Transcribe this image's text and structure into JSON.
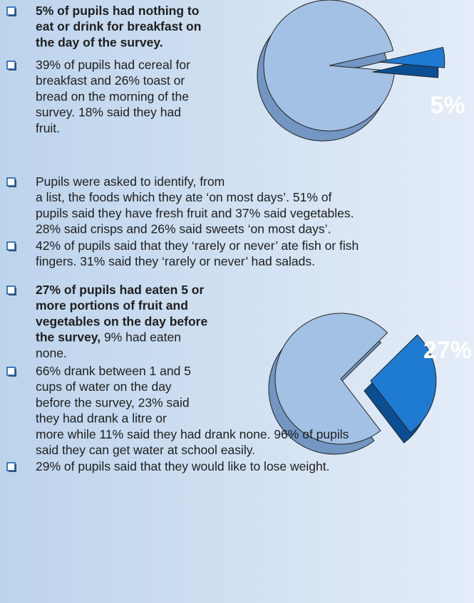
{
  "bullets": [
    {
      "lines": [
        [
          {
            "text": "5% of pupils had nothing to",
            "bold": true
          }
        ],
        [
          {
            "text": "eat or drink for breakfast on",
            "bold": true
          }
        ],
        [
          {
            "text": "the day of the survey.",
            "bold": true
          }
        ]
      ]
    },
    {
      "lines": [
        [
          {
            "text": "39% of pupils had cereal for",
            "bold": false
          }
        ],
        [
          {
            "text": "breakfast and 26% toast or",
            "bold": false
          }
        ],
        [
          {
            "text": "bread on the morning of the",
            "bold": false
          }
        ],
        [
          {
            "text": "survey. 18% said they had",
            "bold": false
          }
        ],
        [
          {
            "text": "fruit.",
            "bold": false
          }
        ]
      ]
    },
    {
      "lines": [
        [
          {
            "text": "Pupils were asked to identify, from",
            "bold": false
          }
        ],
        [
          {
            "text": "a list, the foods which they ate ‘on most days’. 51% of",
            "bold": false
          }
        ],
        [
          {
            "text": "pupils said they have fresh fruit and 37% said vegetables.",
            "bold": false
          }
        ],
        [
          {
            "text": "28% said crisps and 26% said sweets ‘on most days’.",
            "bold": false
          }
        ]
      ]
    },
    {
      "lines": [
        [
          {
            "text": "42% of pupils said that they ‘rarely or never’ ate fish or fish",
            "bold": false
          }
        ],
        [
          {
            "text": "fingers. 31% said they ‘rarely or never’ had salads.",
            "bold": false
          }
        ]
      ]
    },
    {
      "lines": [
        [
          {
            "text": "27% of pupils had eaten 5 or",
            "bold": true
          }
        ],
        [
          {
            "text": "more portions of fruit and",
            "bold": true
          }
        ],
        [
          {
            "text": "vegetables on the day before",
            "bold": true
          }
        ],
        [
          {
            "text": "the survey,",
            "bold": true
          },
          {
            "text": " 9% had eaten",
            "bold": false
          }
        ],
        [
          {
            "text": "none.",
            "bold": false
          }
        ]
      ]
    },
    {
      "lines": [
        [
          {
            "text": "66% drank between 1 and 5",
            "bold": false
          }
        ],
        [
          {
            "text": "cups of water on the day",
            "bold": false
          }
        ],
        [
          {
            "text": "before the survey, 23% said",
            "bold": false
          }
        ],
        [
          {
            "text": "they had drank a litre or",
            "bold": false
          }
        ],
        [
          {
            "text": "more while 11% said they had drank none. 96% of pupils",
            "bold": false
          }
        ],
        [
          {
            "text": "said they can get water at school easily.",
            "bold": false
          }
        ]
      ]
    },
    {
      "lines": [
        [
          {
            "text": "29% of pupils said that they would like to lose weight.",
            "bold": false
          }
        ]
      ]
    }
  ],
  "chart_data": [
    {
      "type": "pie",
      "values": [
        5
      ],
      "value_labels": [
        "5%"
      ]
    },
    {
      "type": "pie",
      "values": [
        27
      ],
      "value_labels": [
        "27%"
      ]
    }
  ]
}
